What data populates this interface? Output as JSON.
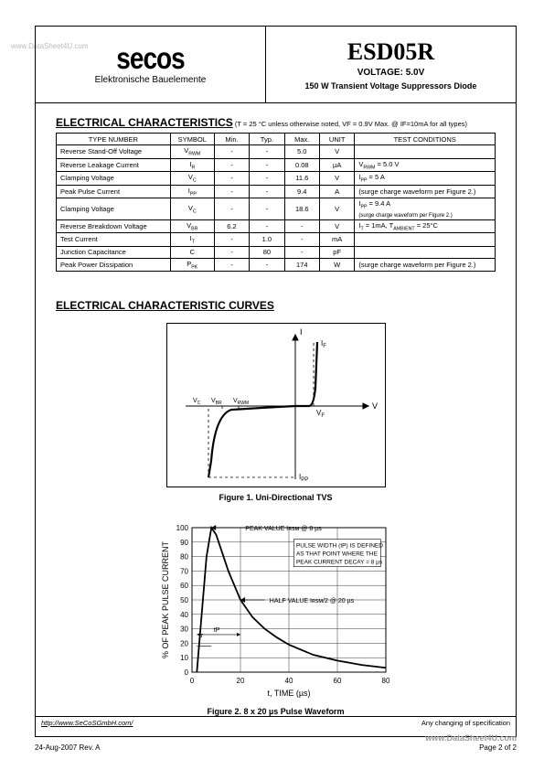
{
  "watermark_top": "www.DataSheet4U.com",
  "watermark_bottom": "www.DataSheet4U.com",
  "header": {
    "logo_text": "secos",
    "company": "Elektronische Bauelemente",
    "part_number": "ESD05R",
    "voltage_line": "VOLTAGE: 5.0V",
    "desc_line": "150 W Transient Voltage Suppressors Diode"
  },
  "section1": {
    "title": "ELECTRICAL CHARACTERISTICS",
    "note": " (T = 25 °C unless otherwise noted, VF = 0.9V Max. @ IF=10mA for all types)"
  },
  "table": {
    "headers": [
      "TYPE NUMBER",
      "SYMBOL",
      "Min.",
      "Typ.",
      "Max.",
      "UNIT",
      "TEST CONDITIONS"
    ],
    "rows": [
      [
        "Reverse Stand-Off Voltage",
        "V<sub>RWM</sub>",
        "-",
        "-",
        "5.0",
        "V",
        ""
      ],
      [
        "Reverse Leakage Current",
        "I<sub>R</sub>",
        "-",
        "-",
        "0.08",
        "µA",
        "V<sub>RWM</sub> = 5.0 V"
      ],
      [
        "Clamping Voltage",
        "V<sub>C</sub>",
        "-",
        "-",
        "11.6",
        "V",
        "I<sub>PP</sub> = 5 A"
      ],
      [
        "Peak Pulse Current",
        "I<sub>PP</sub>",
        "-",
        "-",
        "9.4",
        "A",
        "(surge charge waveform per Figure 2.)"
      ],
      [
        "Clamping Voltage",
        "V<sub>C</sub>",
        "-",
        "-",
        "18.6",
        "V",
        "I<sub>PP</sub> = 9.4 A<br><span style='font-size:6px'>(surge charge waveform per Figure 2.)</span>"
      ],
      [
        "Reverse Breakdown Voltage",
        "V<sub>BR</sub>",
        "6.2",
        "-",
        "-",
        "V",
        "I<sub>T</sub> = 1mA, T<sub>AMBIENT</sub> = 25°C"
      ],
      [
        "Test Current",
        "I<sub>T</sub>",
        "-",
        "1.0",
        "-",
        "mA",
        ""
      ],
      [
        "Junction Capacitance",
        "C",
        "-",
        "80",
        "-",
        "pF",
        ""
      ],
      [
        "Peak Power Dissipation",
        "P<sub>PK</sub>",
        "-",
        "-",
        "174",
        "W",
        "(surge charge waveform per Figure 2.)"
      ]
    ],
    "col_widths": [
      "26%",
      "10%",
      "8%",
      "8%",
      "8%",
      "8%",
      "32%"
    ]
  },
  "curves_title": "ELECTRICAL CHARACTERISTIC CURVES",
  "figure1": {
    "caption": "Figure 1. Uni-Directional TVS",
    "labels": {
      "I": "I",
      "IF": "Iᴅ",
      "V": "V",
      "VF": "Vᴅ",
      "VC": "Vᴄ",
      "VBR": "Vʙʀ",
      "VRWM": "Vʀᴡᴍ",
      "IPP": "Iᴘᴘ"
    },
    "stroke": "#000000",
    "bg": "#ffffff"
  },
  "figure2": {
    "caption": "Figure 2. 8 x 20 µs Pulse Waveform",
    "xlabel": "t, TIME (µs)",
    "ylabel": "% OF PEAK PULSE CURRENT",
    "xlim": [
      0,
      80
    ],
    "xtick_step": 20,
    "ylim": [
      0,
      100
    ],
    "ytick_step": 10,
    "curve": [
      [
        2,
        0
      ],
      [
        4,
        40
      ],
      [
        6,
        80
      ],
      [
        8,
        100
      ],
      [
        10,
        95
      ],
      [
        12,
        85
      ],
      [
        15,
        70
      ],
      [
        20,
        50
      ],
      [
        25,
        38
      ],
      [
        30,
        30
      ],
      [
        35,
        24
      ],
      [
        40,
        19
      ],
      [
        50,
        12
      ],
      [
        60,
        8
      ],
      [
        70,
        5
      ],
      [
        80,
        3
      ]
    ],
    "annotations": {
      "peak": "PEAK VALUE Iʀsᴍ @ 8 µs",
      "half": "HALF VALUE Iʀsᴍ/2 @ 20 µs",
      "pulse": "PULSE WIDTH (tᴘ) IS DEFINED AS THAT POINT WHERE THE PEAK CURRENT DECAY = 8 µs",
      "tr": "tᵣ",
      "tp": "tᴘ"
    },
    "stroke": "#000000",
    "grid": "#000000"
  },
  "footer": {
    "url": "http://www.SeCoSGmbH.com/",
    "right": "Any changing of specification",
    "rev": "24-Aug-2007 Rev. A",
    "page": "Page 2 of 2"
  }
}
